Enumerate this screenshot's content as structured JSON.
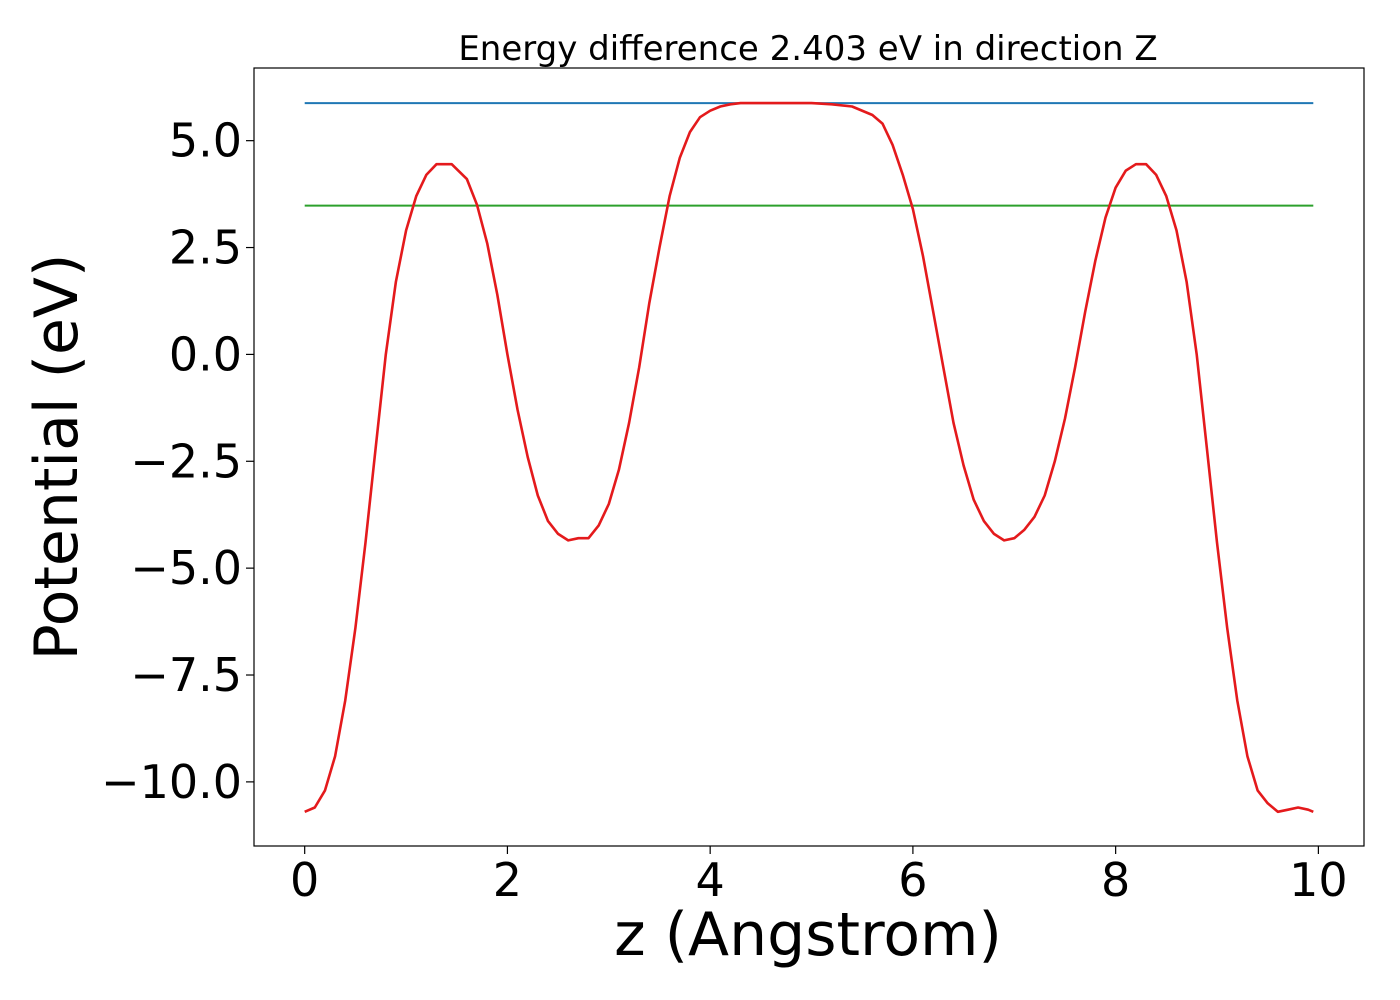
{
  "chart_data": {
    "type": "line",
    "title": "Energy difference 2.403 eV in direction Z",
    "xlabel": "z (Angstrom)",
    "ylabel": "Potential (eV)",
    "xlim": [
      -0.5,
      10.45
    ],
    "ylim": [
      -11.5,
      6.7
    ],
    "xticks": [
      0,
      2,
      4,
      6,
      8,
      10
    ],
    "xtick_labels": [
      "0",
      "2",
      "4",
      "6",
      "8",
      "10"
    ],
    "yticks": [
      5.0,
      2.5,
      0.0,
      -2.5,
      -5.0,
      -7.5,
      -10.0
    ],
    "ytick_labels": [
      "5.0",
      "2.5",
      "0.0",
      "−2.5",
      "−5.0",
      "−7.5",
      "−10.0"
    ],
    "grid": false,
    "series": [
      {
        "color": "#1f77b4",
        "x": [
          0.0,
          9.95
        ],
        "y": [
          5.88,
          5.88
        ]
      },
      {
        "color": "#2ca02c",
        "x": [
          0.0,
          9.95
        ],
        "y": [
          3.48,
          3.48
        ]
      },
      {
        "color": "#e41a1c",
        "x": [
          0.0,
          0.1,
          0.2,
          0.3,
          0.4,
          0.5,
          0.6,
          0.7,
          0.8,
          0.9,
          1.0,
          1.1,
          1.2,
          1.3,
          1.45,
          1.6,
          1.7,
          1.8,
          1.9,
          2.0,
          2.1,
          2.2,
          2.3,
          2.4,
          2.5,
          2.6,
          2.7,
          2.8,
          2.9,
          3.0,
          3.1,
          3.2,
          3.3,
          3.4,
          3.5,
          3.6,
          3.7,
          3.8,
          3.9,
          4.0,
          4.1,
          4.2,
          4.3,
          4.4,
          4.6,
          4.8,
          5.0,
          5.2,
          5.4,
          5.6,
          5.7,
          5.8,
          5.9,
          6.0,
          6.1,
          6.2,
          6.3,
          6.4,
          6.5,
          6.6,
          6.7,
          6.8,
          6.9,
          7.0,
          7.1,
          7.2,
          7.3,
          7.4,
          7.5,
          7.6,
          7.7,
          7.8,
          7.9,
          8.0,
          8.1,
          8.2,
          8.3,
          8.4,
          8.5,
          8.6,
          8.7,
          8.8,
          8.9,
          9.0,
          9.1,
          9.2,
          9.3,
          9.4,
          9.5,
          9.6,
          9.7,
          9.8,
          9.9,
          9.95
        ],
        "y": [
          -10.7,
          -10.6,
          -10.2,
          -9.4,
          -8.1,
          -6.4,
          -4.4,
          -2.2,
          0.0,
          1.7,
          2.9,
          3.7,
          4.2,
          4.45,
          4.45,
          4.1,
          3.5,
          2.6,
          1.4,
          0.0,
          -1.3,
          -2.4,
          -3.3,
          -3.9,
          -4.2,
          -4.35,
          -4.3,
          -4.3,
          -4.0,
          -3.5,
          -2.7,
          -1.6,
          -0.3,
          1.2,
          2.5,
          3.7,
          4.6,
          5.2,
          5.55,
          5.7,
          5.8,
          5.85,
          5.88,
          5.88,
          5.88,
          5.88,
          5.88,
          5.85,
          5.8,
          5.6,
          5.4,
          4.9,
          4.2,
          3.4,
          2.3,
          1.0,
          -0.3,
          -1.6,
          -2.6,
          -3.4,
          -3.9,
          -4.2,
          -4.35,
          -4.3,
          -4.1,
          -3.8,
          -3.3,
          -2.5,
          -1.5,
          -0.3,
          1.0,
          2.2,
          3.2,
          3.9,
          4.3,
          4.45,
          4.45,
          4.2,
          3.7,
          2.9,
          1.7,
          0.0,
          -2.2,
          -4.4,
          -6.4,
          -8.1,
          -9.4,
          -10.2,
          -10.5,
          -10.7,
          -10.65,
          -10.6,
          -10.65,
          -10.7
        ]
      }
    ]
  }
}
